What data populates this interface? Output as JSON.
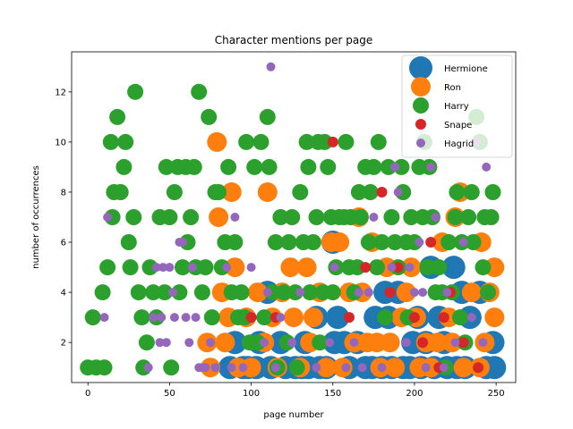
{
  "chart_data": {
    "type": "scatter",
    "title": "Character mentions per page",
    "xlabel": "page number",
    "ylabel": "number of occurrences",
    "xlim": [
      -10,
      262
    ],
    "ylim": [
      0.4,
      13.6
    ],
    "xticks": [
      0,
      50,
      100,
      150,
      200,
      250
    ],
    "yticks": [
      2,
      4,
      6,
      8,
      10,
      12
    ],
    "grid": false,
    "legend_position": "top-right",
    "series": [
      {
        "name": "Hermione",
        "color": "#1f77b4",
        "marker_size": 13,
        "points": [
          [
            87,
            1
          ],
          [
            90,
            2
          ],
          [
            95,
            1
          ],
          [
            98,
            1
          ],
          [
            103,
            1
          ],
          [
            105,
            2
          ],
          [
            110,
            4
          ],
          [
            112,
            1
          ],
          [
            118,
            2
          ],
          [
            121,
            1
          ],
          [
            127,
            1
          ],
          [
            131,
            1
          ],
          [
            133,
            2
          ],
          [
            135,
            1
          ],
          [
            140,
            3
          ],
          [
            142,
            1
          ],
          [
            146,
            1
          ],
          [
            150,
            6
          ],
          [
            151,
            2
          ],
          [
            153,
            3
          ],
          [
            157,
            2
          ],
          [
            160,
            1
          ],
          [
            165,
            2
          ],
          [
            170,
            1
          ],
          [
            174,
            1
          ],
          [
            176,
            3
          ],
          [
            180,
            1
          ],
          [
            182,
            4
          ],
          [
            184,
            3
          ],
          [
            186,
            1
          ],
          [
            190,
            4
          ],
          [
            193,
            1
          ],
          [
            197,
            1
          ],
          [
            199,
            2
          ],
          [
            202,
            3
          ],
          [
            204,
            1
          ],
          [
            207,
            2
          ],
          [
            210,
            5
          ],
          [
            212,
            1
          ],
          [
            215,
            3
          ],
          [
            218,
            2
          ],
          [
            220,
            1
          ],
          [
            224,
            5
          ],
          [
            226,
            1
          ],
          [
            229,
            4
          ],
          [
            231,
            1
          ],
          [
            234,
            3
          ],
          [
            240,
            4
          ],
          [
            244,
            1
          ],
          [
            248,
            2
          ],
          [
            249,
            1
          ]
        ]
      },
      {
        "name": "Ron",
        "color": "#ff7f0e",
        "marker_size": 11,
        "points": [
          [
            73,
            2
          ],
          [
            75,
            1
          ],
          [
            79,
            10
          ],
          [
            80,
            7
          ],
          [
            82,
            4
          ],
          [
            84,
            2
          ],
          [
            86,
            3
          ],
          [
            88,
            8
          ],
          [
            90,
            5
          ],
          [
            92,
            1
          ],
          [
            97,
            3
          ],
          [
            100,
            1
          ],
          [
            104,
            4
          ],
          [
            108,
            2
          ],
          [
            110,
            8
          ],
          [
            113,
            3
          ],
          [
            116,
            1
          ],
          [
            119,
            4
          ],
          [
            124,
            5
          ],
          [
            126,
            3
          ],
          [
            130,
            1
          ],
          [
            134,
            5
          ],
          [
            136,
            2
          ],
          [
            138,
            3
          ],
          [
            142,
            4
          ],
          [
            146,
            1
          ],
          [
            149,
            6
          ],
          [
            154,
            6
          ],
          [
            156,
            1
          ],
          [
            160,
            4
          ],
          [
            163,
            2
          ],
          [
            166,
            7
          ],
          [
            168,
            4
          ],
          [
            171,
            2
          ],
          [
            174,
            6
          ],
          [
            177,
            2
          ],
          [
            179,
            1
          ],
          [
            183,
            5
          ],
          [
            185,
            2
          ],
          [
            188,
            1
          ],
          [
            192,
            3
          ],
          [
            195,
            4
          ],
          [
            198,
            5
          ],
          [
            201,
            3
          ],
          [
            203,
            1
          ],
          [
            207,
            2
          ],
          [
            210,
            1
          ],
          [
            214,
            2
          ],
          [
            217,
            6
          ],
          [
            221,
            3
          ],
          [
            223,
            2
          ],
          [
            225,
            7
          ],
          [
            228,
            8
          ],
          [
            230,
            1
          ],
          [
            235,
            4
          ],
          [
            240,
            1
          ],
          [
            241,
            6
          ],
          [
            243,
            2
          ],
          [
            246,
            4
          ],
          [
            249,
            3
          ],
          [
            249,
            5
          ]
        ]
      },
      {
        "name": "Harry",
        "color": "#2ca02c",
        "marker_size": 9,
        "points": [
          [
            0,
            1
          ],
          [
            3,
            3
          ],
          [
            5,
            1
          ],
          [
            9,
            4
          ],
          [
            10,
            1
          ],
          [
            12,
            5
          ],
          [
            14,
            10
          ],
          [
            15,
            7
          ],
          [
            16,
            8
          ],
          [
            18,
            11
          ],
          [
            20,
            8
          ],
          [
            22,
            9
          ],
          [
            23,
            10
          ],
          [
            25,
            6
          ],
          [
            26,
            5
          ],
          [
            28,
            7
          ],
          [
            29,
            12
          ],
          [
            31,
            4
          ],
          [
            33,
            3
          ],
          [
            34,
            1
          ],
          [
            36,
            2
          ],
          [
            38,
            5
          ],
          [
            40,
            4
          ],
          [
            42,
            3
          ],
          [
            44,
            7
          ],
          [
            47,
            4
          ],
          [
            48,
            9
          ],
          [
            50,
            7
          ],
          [
            51,
            1
          ],
          [
            53,
            8
          ],
          [
            55,
            9
          ],
          [
            56,
            4
          ],
          [
            58,
            5
          ],
          [
            60,
            9
          ],
          [
            61,
            6
          ],
          [
            63,
            7
          ],
          [
            65,
            9
          ],
          [
            66,
            5
          ],
          [
            68,
            12
          ],
          [
            70,
            4
          ],
          [
            72,
            5
          ],
          [
            74,
            11
          ],
          [
            76,
            3
          ],
          [
            78,
            8
          ],
          [
            80,
            8
          ],
          [
            82,
            5
          ],
          [
            84,
            6
          ],
          [
            86,
            9
          ],
          [
            88,
            4
          ],
          [
            90,
            6
          ],
          [
            92,
            3
          ],
          [
            94,
            4
          ],
          [
            96,
            3
          ],
          [
            97,
            10
          ],
          [
            99,
            2
          ],
          [
            102,
            9
          ],
          [
            104,
            2
          ],
          [
            106,
            10
          ],
          [
            108,
            3
          ],
          [
            110,
            11
          ],
          [
            111,
            9
          ],
          [
            113,
            4
          ],
          [
            115,
            6
          ],
          [
            116,
            1
          ],
          [
            118,
            7
          ],
          [
            120,
            4
          ],
          [
            122,
            2
          ],
          [
            123,
            6
          ],
          [
            125,
            7
          ],
          [
            127,
            4
          ],
          [
            128,
            1
          ],
          [
            130,
            8
          ],
          [
            132,
            6
          ],
          [
            134,
            10
          ],
          [
            135,
            9
          ],
          [
            136,
            4
          ],
          [
            138,
            6
          ],
          [
            140,
            7
          ],
          [
            141,
            10
          ],
          [
            142,
            2
          ],
          [
            144,
            4
          ],
          [
            145,
            10
          ],
          [
            147,
            9
          ],
          [
            149,
            7
          ],
          [
            150,
            4
          ],
          [
            152,
            5
          ],
          [
            154,
            7
          ],
          [
            157,
            7
          ],
          [
            158,
            10
          ],
          [
            160,
            5
          ],
          [
            161,
            7
          ],
          [
            163,
            4
          ],
          [
            165,
            5
          ],
          [
            166,
            8
          ],
          [
            167,
            7
          ],
          [
            170,
            9
          ],
          [
            172,
            6
          ],
          [
            173,
            8
          ],
          [
            175,
            9
          ],
          [
            177,
            5
          ],
          [
            178,
            10
          ],
          [
            180,
            6
          ],
          [
            182,
            3
          ],
          [
            184,
            9
          ],
          [
            186,
            7
          ],
          [
            188,
            6
          ],
          [
            190,
            5
          ],
          [
            192,
            9
          ],
          [
            193,
            8
          ],
          [
            195,
            6
          ],
          [
            196,
            3
          ],
          [
            198,
            7
          ],
          [
            200,
            6
          ],
          [
            203,
            9
          ],
          [
            205,
            7
          ],
          [
            206,
            10
          ],
          [
            208,
            5
          ],
          [
            209,
            9
          ],
          [
            211,
            7
          ],
          [
            213,
            4
          ],
          [
            215,
            5
          ],
          [
            217,
            4
          ],
          [
            219,
            1
          ],
          [
            221,
            6
          ],
          [
            223,
            4
          ],
          [
            225,
            7
          ],
          [
            226,
            8
          ],
          [
            228,
            3
          ],
          [
            229,
            6
          ],
          [
            231,
            2
          ],
          [
            233,
            7
          ],
          [
            235,
            8
          ],
          [
            236,
            6
          ],
          [
            238,
            11
          ],
          [
            240,
            10
          ],
          [
            242,
            5
          ],
          [
            243,
            7
          ],
          [
            245,
            4
          ],
          [
            247,
            7
          ],
          [
            248,
            8
          ]
        ]
      },
      {
        "name": "Snape",
        "color": "#d62728",
        "marker_size": 6,
        "points": [
          [
            100,
            3
          ],
          [
            115,
            3
          ],
          [
            150,
            10
          ],
          [
            160,
            3
          ],
          [
            170,
            5
          ],
          [
            180,
            8
          ],
          [
            185,
            4
          ],
          [
            190,
            5
          ],
          [
            200,
            3
          ],
          [
            205,
            2
          ],
          [
            210,
            6
          ],
          [
            215,
            1
          ],
          [
            218,
            3
          ],
          [
            222,
            4
          ],
          [
            230,
            2
          ],
          [
            239,
            1
          ]
        ]
      },
      {
        "name": "Hagrid",
        "color": "#9467bd",
        "marker_size": 5,
        "points": [
          [
            10,
            3
          ],
          [
            12,
            7
          ],
          [
            37,
            1
          ],
          [
            40,
            3
          ],
          [
            42,
            5
          ],
          [
            44,
            2
          ],
          [
            45,
            3
          ],
          [
            46,
            5
          ],
          [
            48,
            2
          ],
          [
            50,
            5
          ],
          [
            52,
            4
          ],
          [
            53,
            3
          ],
          [
            56,
            6
          ],
          [
            58,
            6
          ],
          [
            60,
            3
          ],
          [
            62,
            2
          ],
          [
            64,
            5
          ],
          [
            66,
            3
          ],
          [
            68,
            1
          ],
          [
            70,
            1
          ],
          [
            72,
            1
          ],
          [
            75,
            2
          ],
          [
            78,
            1
          ],
          [
            85,
            5
          ],
          [
            88,
            1
          ],
          [
            90,
            7
          ],
          [
            95,
            1
          ],
          [
            100,
            5
          ],
          [
            108,
            2
          ],
          [
            110,
            4
          ],
          [
            112,
            13
          ],
          [
            115,
            1
          ],
          [
            118,
            3
          ],
          [
            125,
            2
          ],
          [
            130,
            4
          ],
          [
            140,
            1
          ],
          [
            148,
            2
          ],
          [
            151,
            5
          ],
          [
            158,
            1
          ],
          [
            163,
            2
          ],
          [
            166,
            4
          ],
          [
            168,
            1
          ],
          [
            172,
            4
          ],
          [
            175,
            7
          ],
          [
            180,
            1
          ],
          [
            186,
            5
          ],
          [
            188,
            9
          ],
          [
            190,
            8
          ],
          [
            195,
            2
          ],
          [
            197,
            5
          ],
          [
            200,
            4
          ],
          [
            203,
            6
          ],
          [
            205,
            4
          ],
          [
            207,
            1
          ],
          [
            210,
            9
          ],
          [
            213,
            7
          ],
          [
            218,
            1
          ],
          [
            220,
            4
          ],
          [
            225,
            2
          ],
          [
            230,
            6
          ],
          [
            235,
            3
          ],
          [
            238,
            10
          ],
          [
            242,
            2
          ],
          [
            244,
            9
          ]
        ]
      }
    ]
  }
}
